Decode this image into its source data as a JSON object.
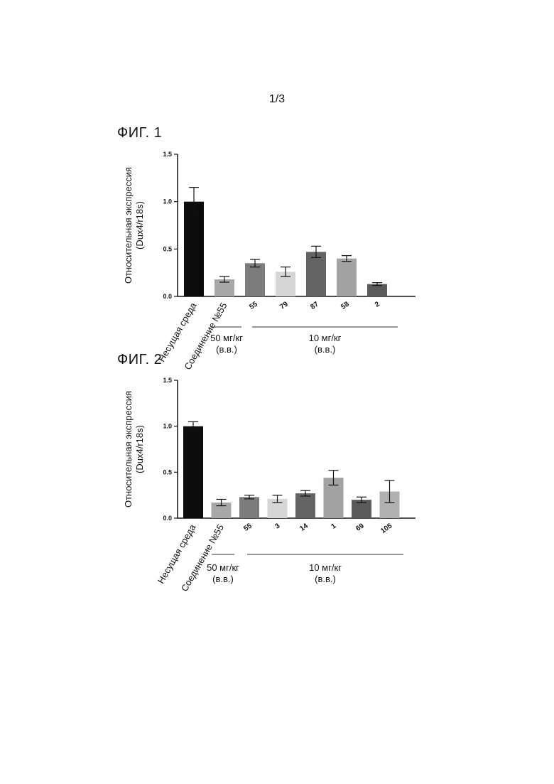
{
  "page": {
    "number": "1/3"
  },
  "figures": [
    {
      "title": "ФИГ. 1"
    },
    {
      "title": "ФИГ. 2"
    }
  ],
  "chart_data": [
    {
      "type": "bar",
      "title": "ФИГ. 1",
      "ylabel": [
        "Относительная экспрессия",
        "(Dux4/r18s)"
      ],
      "ylim": [
        0,
        1.5
      ],
      "yticks": [
        "0.0",
        "0.5",
        "1.0",
        "1.5"
      ],
      "categories": [
        "Несущая среда",
        "Соединение №55",
        "55",
        "79",
        "87",
        "58",
        "2"
      ],
      "values": [
        1.0,
        0.18,
        0.35,
        0.26,
        0.47,
        0.4,
        0.13
      ],
      "errors": [
        0.15,
        0.03,
        0.04,
        0.05,
        0.06,
        0.03,
        0.015
      ],
      "colors": [
        "#0c0c0c",
        "#a8a8a8",
        "#7c7c7c",
        "#d6d6d6",
        "#646464",
        "#a2a2a2",
        "#5a5a5a"
      ],
      "groups": [
        {
          "label": [
            "50 мг/кг",
            "(в.в.)"
          ],
          "from": 1,
          "to": 1
        },
        {
          "label": [
            "10 мг/кг",
            "(в.в.)"
          ],
          "from": 2,
          "to": 6
        }
      ],
      "grid": false
    },
    {
      "type": "bar",
      "title": "ФИГ. 2",
      "ylabel": [
        "Относительная экспрессия",
        "(Dux4/r18s)"
      ],
      "ylim": [
        0,
        1.5
      ],
      "yticks": [
        "0.0",
        "0.5",
        "1.0",
        "1.5"
      ],
      "categories": [
        "Несущая среда",
        "Соединение №55",
        "55",
        "3",
        "14",
        "1",
        "69",
        "105"
      ],
      "values": [
        1.0,
        0.17,
        0.23,
        0.21,
        0.27,
        0.44,
        0.2,
        0.29
      ],
      "errors": [
        0.05,
        0.035,
        0.02,
        0.04,
        0.03,
        0.08,
        0.03,
        0.12
      ],
      "colors": [
        "#0c0c0c",
        "#a8a8a8",
        "#7c7c7c",
        "#d6d6d6",
        "#646464",
        "#a2a2a2",
        "#5a5a5a",
        "#b0b0b0"
      ],
      "groups": [
        {
          "label": [
            "50 мг/кг",
            "(в.в.)"
          ],
          "from": 1,
          "to": 1
        },
        {
          "label": [
            "10 мг/кг",
            "(в.в.)"
          ],
          "from": 2,
          "to": 7
        }
      ],
      "grid": false
    }
  ]
}
